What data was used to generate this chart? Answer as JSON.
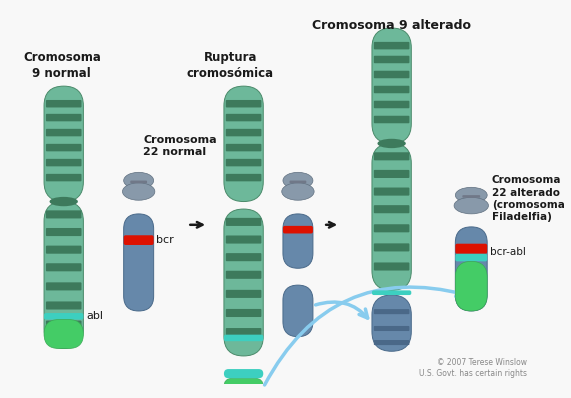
{
  "title_top": "Cromosoma 9 alterado",
  "panel1_title": "Cromosoma\n9 normal",
  "panel1_label22": "Cromosoma\n22 normal",
  "panel1_gene_bcr": "bcr",
  "panel1_gene_abl": "abl",
  "panel2_title": "Ruptura\ncromosómica",
  "panel3_label22": "Cromosoma\n22 alterado\n(cromosoma\nFiladelfia)",
  "panel3_gene_bcrabl": "bcr-abl",
  "copyright": "© 2007 Terese Winslow\nU.S. Govt. has certain rights",
  "bg_color": "#f8f8f8",
  "chr9_body_color": "#6db89a",
  "chr9_body_light": "#a8d8c0",
  "chr9_body_dark": "#3d7a5c",
  "chr9_stripe_dark": "#2d6048",
  "chr9_stripe_light": "#88ccaa",
  "chr9_teal_band": "#3dcfc0",
  "chr9_green_cap": "#44cc66",
  "chr9_green_cap2": "#33aa44",
  "chr22_body_color": "#6688aa",
  "chr22_body_light": "#8aaabb",
  "chr22_cent_color": "#8899aa",
  "chr22_cent_light": "#aabbcc",
  "chr22_red_band": "#dd1100",
  "chr22_cyan_band": "#00bbcc",
  "chr22_green_band": "#44cc66",
  "arrow_black": "#1a1a1a",
  "arrow_blue": "#88ccee",
  "arrow_blue_fill": "#aaddff",
  "text_color": "#1a1a1a"
}
